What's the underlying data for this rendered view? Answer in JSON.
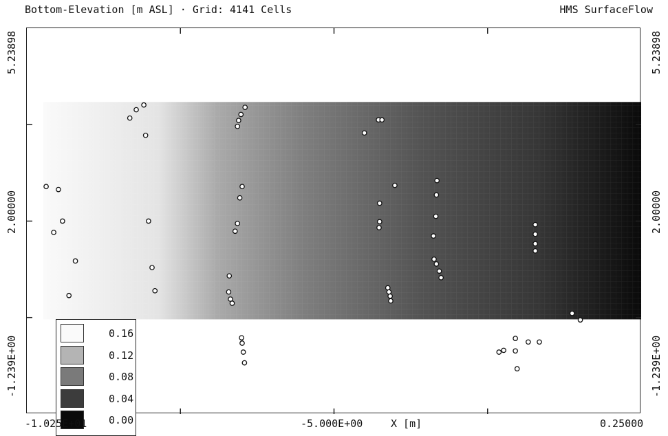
{
  "header": {
    "title_left": "Bottom-Elevation [m ASL] · Grid: 4141 Cells",
    "title_right": "HMS SurfaceFlow"
  },
  "x_axis": {
    "label_left": "-1.025E+01",
    "label_mid": "-5.000E+00",
    "label_axis": "X [m]",
    "label_right": "0.25000"
  },
  "y_axis": {
    "left_top": "5.23898",
    "left_mid": "2.00000",
    "left_bottom": "-1.239E+00",
    "right_top": "5.23898",
    "right_mid": "2.00000",
    "right_bottom": "-1.239E+00"
  },
  "legend": {
    "entries": [
      {
        "label": "0.16",
        "color": "#fafafa"
      },
      {
        "label": "0.12",
        "color": "#b4b4b4"
      },
      {
        "label": "0.08",
        "color": "#7a7a7a"
      },
      {
        "label": "0.04",
        "color": "#3c3c3c"
      },
      {
        "label": "0.00",
        "color": "#0a0a0a"
      }
    ]
  },
  "chart_data": {
    "type": "heatmap",
    "xlim": [
      -10.25,
      0.25
    ],
    "ylim": [
      -1.239,
      5.23898
    ],
    "field": {
      "x_range": [
        -9.97,
        0.25
      ],
      "y_range": [
        0.35,
        4.0
      ],
      "values_at_x": [
        {
          "x": -9.97,
          "v": 0.165
        },
        {
          "x": -8.0,
          "v": 0.15
        },
        {
          "x": -7.0,
          "v": 0.11
        },
        {
          "x": -5.5,
          "v": 0.08
        },
        {
          "x": -3.5,
          "v": 0.05
        },
        {
          "x": -1.5,
          "v": 0.03
        },
        {
          "x": 0.25,
          "v": 0.0
        }
      ],
      "color_min": "#0a0a0a",
      "color_max": "#fafafa"
    },
    "points": [
      {
        "x": -9.92,
        "y": 2.58
      },
      {
        "x": -9.71,
        "y": 2.53
      },
      {
        "x": -9.64,
        "y": 2.0
      },
      {
        "x": -9.79,
        "y": 1.81
      },
      {
        "x": -9.42,
        "y": 1.33
      },
      {
        "x": -9.53,
        "y": 0.75
      },
      {
        "x": -8.49,
        "y": 3.73
      },
      {
        "x": -8.38,
        "y": 3.87
      },
      {
        "x": -8.25,
        "y": 3.95
      },
      {
        "x": -8.22,
        "y": 3.44
      },
      {
        "x": -8.17,
        "y": 2.0
      },
      {
        "x": -8.11,
        "y": 1.22
      },
      {
        "x": -8.06,
        "y": 0.83
      },
      {
        "x": -6.52,
        "y": 3.91
      },
      {
        "x": -6.59,
        "y": 3.79
      },
      {
        "x": -6.63,
        "y": 3.69
      },
      {
        "x": -6.65,
        "y": 3.59
      },
      {
        "x": -6.57,
        "y": 2.58
      },
      {
        "x": -6.61,
        "y": 2.39
      },
      {
        "x": -6.65,
        "y": 1.96
      },
      {
        "x": -6.69,
        "y": 1.83
      },
      {
        "x": -6.79,
        "y": 1.08
      },
      {
        "x": -6.8,
        "y": 0.81
      },
      {
        "x": -6.77,
        "y": 0.69
      },
      {
        "x": -6.74,
        "y": 0.62
      },
      {
        "x": -6.58,
        "y": 0.04
      },
      {
        "x": -6.57,
        "y": -0.05
      },
      {
        "x": -6.55,
        "y": -0.2
      },
      {
        "x": -6.53,
        "y": -0.38
      },
      {
        "x": -4.48,
        "y": 3.48
      },
      {
        "x": -4.24,
        "y": 3.7
      },
      {
        "x": -4.18,
        "y": 3.7
      },
      {
        "x": -3.96,
        "y": 2.6
      },
      {
        "x": -4.22,
        "y": 2.3
      },
      {
        "x": -4.22,
        "y": 1.99
      },
      {
        "x": -4.23,
        "y": 1.89
      },
      {
        "x": -4.08,
        "y": 0.88
      },
      {
        "x": -4.06,
        "y": 0.81
      },
      {
        "x": -4.04,
        "y": 0.74
      },
      {
        "x": -4.03,
        "y": 0.66
      },
      {
        "x": -3.24,
        "y": 2.68
      },
      {
        "x": -3.25,
        "y": 2.44
      },
      {
        "x": -3.26,
        "y": 2.08
      },
      {
        "x": -3.3,
        "y": 1.75
      },
      {
        "x": -3.29,
        "y": 1.36
      },
      {
        "x": -3.25,
        "y": 1.28
      },
      {
        "x": -3.2,
        "y": 1.16
      },
      {
        "x": -3.17,
        "y": 1.05
      },
      {
        "x": -2.18,
        "y": -0.2
      },
      {
        "x": -2.1,
        "y": -0.17
      },
      {
        "x": -1.56,
        "y": 1.94
      },
      {
        "x": -1.56,
        "y": 1.78
      },
      {
        "x": -1.56,
        "y": 1.62
      },
      {
        "x": -1.56,
        "y": 1.5
      },
      {
        "x": -1.9,
        "y": 0.03
      },
      {
        "x": -1.9,
        "y": -0.18
      },
      {
        "x": -1.87,
        "y": -0.48
      },
      {
        "x": -1.68,
        "y": -0.03
      },
      {
        "x": -1.49,
        "y": -0.03
      },
      {
        "x": -0.93,
        "y": 0.45
      },
      {
        "x": -0.79,
        "y": 0.34
      }
    ],
    "legend_position": "bottom-left"
  }
}
